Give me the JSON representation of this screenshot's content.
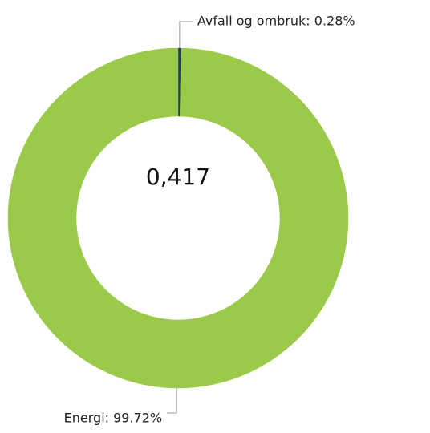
{
  "chart_data": {
    "type": "pie",
    "donut": true,
    "values": [
      0.28,
      99.72
    ],
    "value_labels": [
      "Avfall og ombruk: 0.28%",
      "Energi: 99.72%"
    ],
    "colors": [
      "#1f3a6e",
      "#9bc94a"
    ],
    "center_label": "0,417"
  }
}
